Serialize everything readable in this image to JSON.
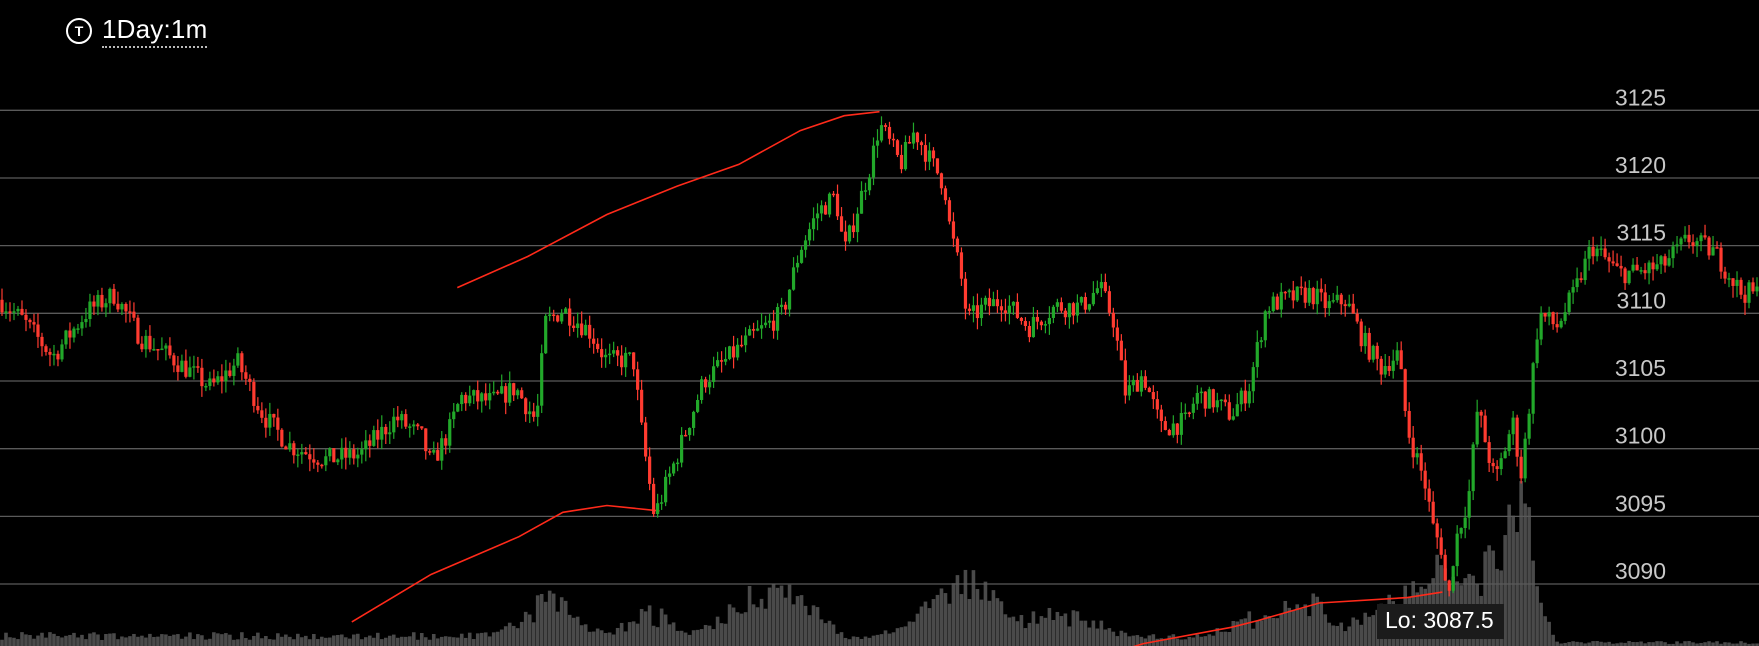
{
  "header": {
    "icon": "T",
    "timeframe": "1Day:1m"
  },
  "chart_data": {
    "type": "candlestick",
    "interval": "1m",
    "yticks": [
      3090,
      3095,
      3100,
      3105,
      3110,
      3115,
      3120,
      3125
    ],
    "ylim": [
      3083.5,
      3126.5
    ],
    "grid": true,
    "up_color": "#22a82a",
    "down_color": "#ff3b30",
    "volume_color": "#4a4a4a",
    "line_color": "#ff2a1a",
    "low_label": "Lo: 3087.5",
    "price_path": [
      [
        0,
        3111
      ],
      [
        0.013,
        3109.5
      ],
      [
        0.03,
        3106.8
      ],
      [
        0.05,
        3110.2
      ],
      [
        0.065,
        3111.4
      ],
      [
        0.08,
        3108.2
      ],
      [
        0.1,
        3106.5
      ],
      [
        0.12,
        3104.5
      ],
      [
        0.135,
        3106.4
      ],
      [
        0.15,
        3102.4
      ],
      [
        0.165,
        3100.2
      ],
      [
        0.185,
        3099.2
      ],
      [
        0.205,
        3099.6
      ],
      [
        0.225,
        3102.3
      ],
      [
        0.24,
        3100.8
      ],
      [
        0.245,
        3098.8
      ],
      [
        0.255,
        3101.2
      ],
      [
        0.262,
        3103.8
      ],
      [
        0.28,
        3103.5
      ],
      [
        0.293,
        3104.5
      ],
      [
        0.305,
        3102.0
      ],
      [
        0.31,
        3109.3
      ],
      [
        0.32,
        3110.3
      ],
      [
        0.335,
        3108.7
      ],
      [
        0.345,
        3106.5
      ],
      [
        0.36,
        3106.6
      ],
      [
        0.365,
        3101.1
      ],
      [
        0.372,
        3095.0
      ],
      [
        0.385,
        3099.5
      ],
      [
        0.4,
        3105.0
      ],
      [
        0.425,
        3108.0
      ],
      [
        0.445,
        3110.0
      ],
      [
        0.455,
        3114.8
      ],
      [
        0.465,
        3117.5
      ],
      [
        0.475,
        3118.7
      ],
      [
        0.48,
        3114.5
      ],
      [
        0.487,
        3117.5
      ],
      [
        0.495,
        3121.0
      ],
      [
        0.5,
        3124.0
      ],
      [
        0.512,
        3121.0
      ],
      [
        0.52,
        3123.5
      ],
      [
        0.528,
        3121.5
      ],
      [
        0.537,
        3119.5
      ],
      [
        0.54,
        3116.3
      ],
      [
        0.546,
        3113.0
      ],
      [
        0.55,
        3109.5
      ],
      [
        0.56,
        3110.5
      ],
      [
        0.57,
        3111.0
      ],
      [
        0.585,
        3109.0
      ],
      [
        0.6,
        3110.5
      ],
      [
        0.615,
        3110.5
      ],
      [
        0.625,
        3112.0
      ],
      [
        0.633,
        3109.5
      ],
      [
        0.64,
        3104.0
      ],
      [
        0.65,
        3105.5
      ],
      [
        0.66,
        3101.5
      ],
      [
        0.675,
        3102.0
      ],
      [
        0.68,
        3104.0
      ],
      [
        0.69,
        3103.5
      ],
      [
        0.7,
        3102.5
      ],
      [
        0.71,
        3104.5
      ],
      [
        0.72,
        3110.5
      ],
      [
        0.73,
        3111.0
      ],
      [
        0.745,
        3111.5
      ],
      [
        0.755,
        3110.5
      ],
      [
        0.765,
        3111.0
      ],
      [
        0.775,
        3108.0
      ],
      [
        0.785,
        3106.0
      ],
      [
        0.795,
        3107.0
      ],
      [
        0.8,
        3101.5
      ],
      [
        0.81,
        3097.5
      ],
      [
        0.815,
        3094.0
      ],
      [
        0.82,
        3092.5
      ],
      [
        0.823,
        3088.2
      ],
      [
        0.827,
        3093.0
      ],
      [
        0.835,
        3096.5
      ],
      [
        0.84,
        3103.0
      ],
      [
        0.85,
        3097.5
      ],
      [
        0.86,
        3102.0
      ],
      [
        0.865,
        3098.0
      ],
      [
        0.87,
        3104.0
      ],
      [
        0.875,
        3110.0
      ],
      [
        0.885,
        3109.0
      ],
      [
        0.895,
        3111.5
      ],
      [
        0.905,
        3115.0
      ],
      [
        0.92,
        3113.0
      ],
      [
        0.93,
        3113.0
      ],
      [
        0.945,
        3113.5
      ],
      [
        0.96,
        3115.5
      ],
      [
        0.975,
        3114.5
      ],
      [
        0.99,
        3111.5
      ],
      [
        1.0,
        3111.5
      ]
    ],
    "upper_band": [
      [
        0.26,
        3111.9
      ],
      [
        0.3,
        3114.2
      ],
      [
        0.345,
        3117.3
      ],
      [
        0.385,
        3119.4
      ],
      [
        0.42,
        3121.0
      ],
      [
        0.455,
        3123.5
      ],
      [
        0.48,
        3124.6
      ],
      [
        0.5,
        3124.9
      ]
    ],
    "lower_band": [
      [
        0.2,
        3087.2
      ],
      [
        0.245,
        3090.7
      ],
      [
        0.295,
        3093.5
      ],
      [
        0.32,
        3095.3
      ],
      [
        0.345,
        3095.8
      ],
      [
        0.375,
        3095.4
      ]
    ],
    "lower_band_2": [
      [
        0.605,
        3083.8
      ],
      [
        0.65,
        3085.6
      ],
      [
        0.7,
        3086.8
      ],
      [
        0.715,
        3087.3
      ],
      [
        0.75,
        3088.6
      ],
      [
        0.8,
        3089.0
      ],
      [
        0.82,
        3089.4
      ]
    ]
  }
}
